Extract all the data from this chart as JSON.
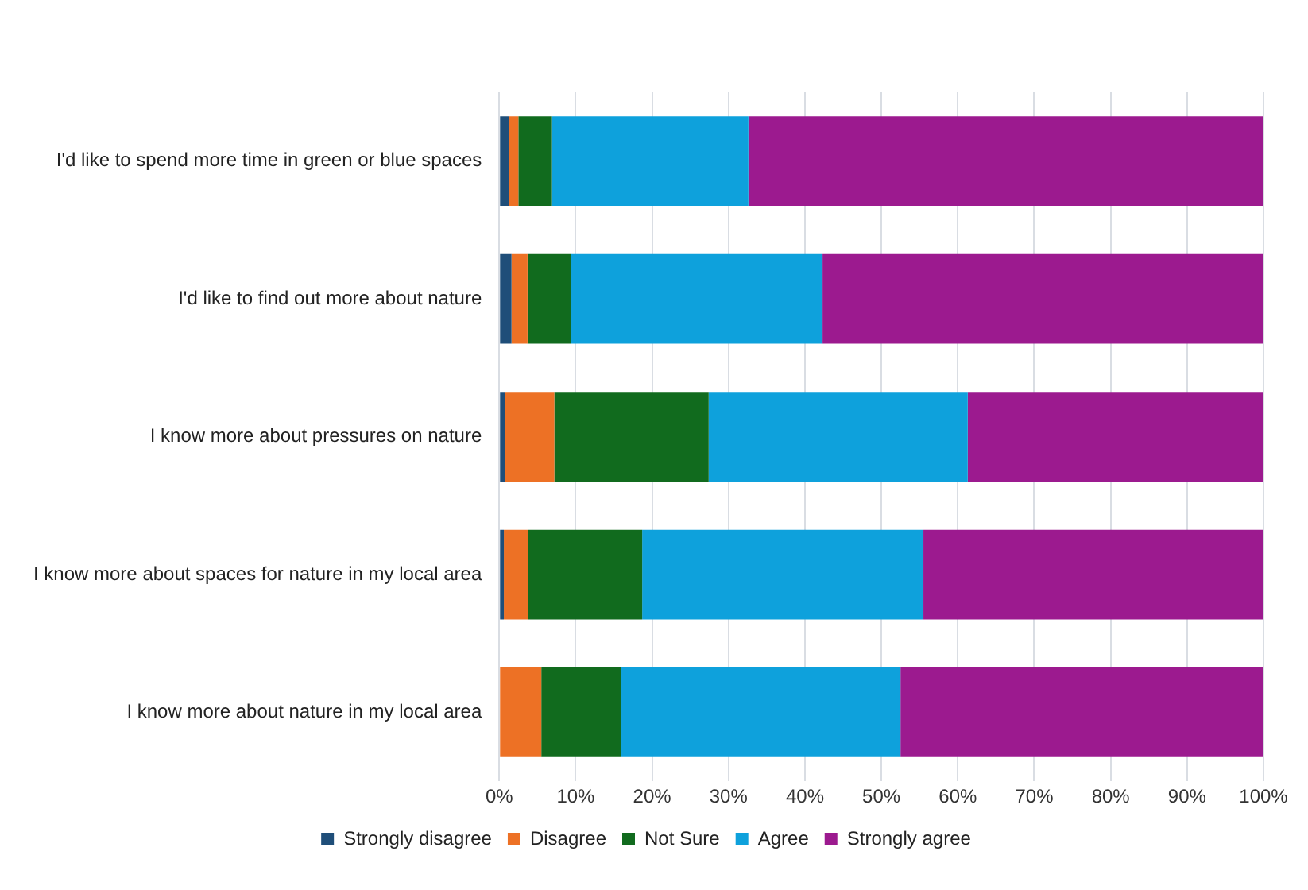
{
  "chart_data": {
    "type": "bar",
    "orientation": "horizontal",
    "stacked": true,
    "categories": [
      "I'd like to spend more time in green or blue spaces",
      "I'd like to find out more about nature",
      "I know more about pressures on nature",
      "I know more about spaces for nature in my local area",
      "I know more about nature in my local area"
    ],
    "series": [
      {
        "name": "Strongly disagree",
        "color": "#1f4e79",
        "values": [
          1.3,
          1.6,
          0.8,
          0.6,
          0
        ]
      },
      {
        "name": "Disagree",
        "color": "#ed7125",
        "values": [
          1.2,
          2.1,
          6.4,
          3.2,
          5.5
        ]
      },
      {
        "name": "Not Sure",
        "color": "#116b1e",
        "values": [
          4.4,
          5.7,
          20.2,
          14.9,
          10.4
        ]
      },
      {
        "name": "Agree",
        "color": "#0ea1dc",
        "values": [
          25.7,
          32.9,
          33.9,
          36.8,
          36.6
        ]
      },
      {
        "name": "Strongly agree",
        "color": "#9c1a8f",
        "values": [
          67.4,
          57.7,
          38.7,
          44.5,
          47.5
        ]
      }
    ],
    "xlim": [
      0,
      100
    ],
    "xticks": [
      {
        "value": 0,
        "label": "0%"
      },
      {
        "value": 10,
        "label": "10%"
      },
      {
        "value": 20,
        "label": "20%"
      },
      {
        "value": 30,
        "label": "30%"
      },
      {
        "value": 40,
        "label": "40%"
      },
      {
        "value": 50,
        "label": "50%"
      },
      {
        "value": 60,
        "label": "60%"
      },
      {
        "value": 70,
        "label": "70%"
      },
      {
        "value": 80,
        "label": "80%"
      },
      {
        "value": 90,
        "label": "90%"
      },
      {
        "value": 100,
        "label": "100%"
      }
    ],
    "grid": "x",
    "legend": "bottom"
  }
}
